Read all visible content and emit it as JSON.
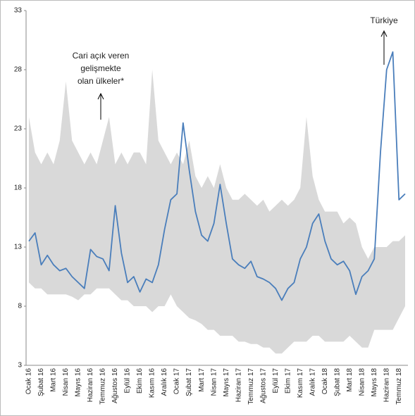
{
  "chart_data": {
    "type": "line",
    "categories": [
      "Ocak 16",
      null,
      "Şubat 16",
      null,
      "Mart 16",
      null,
      "Nisan 16",
      null,
      "Mayıs 16",
      null,
      "Haziran 16",
      null,
      "Temmuz 16",
      null,
      "Ağustos 16",
      null,
      "Eylül 16",
      null,
      "Ekim 16",
      null,
      "Kasım 16",
      null,
      "Aralık 16",
      null,
      "Ocak 17",
      null,
      "Şubat 17",
      null,
      "Mart 17",
      null,
      "Nisan 17",
      null,
      "Mayıs 17",
      null,
      "Haziran 17",
      null,
      "Temmuz 17",
      null,
      "Ağustos 17",
      null,
      "Eylül 17",
      null,
      "Ekim 17",
      null,
      "Kasım 17",
      null,
      "Aralık 17",
      null,
      "Ocak 18",
      null,
      "Şubat 18",
      null,
      "Mart 18",
      null,
      "Nisan 18",
      null,
      "Mayıs 18",
      null,
      "Haziran 18",
      null,
      "Temmuz 18",
      null
    ],
    "series": [
      {
        "name": "Türkiye",
        "color": "#4a7ebb",
        "values": [
          13.5,
          14.2,
          11.5,
          12.3,
          11.5,
          11.0,
          11.2,
          10.5,
          10.0,
          9.5,
          12.8,
          12.2,
          12.0,
          11.0,
          16.5,
          12.5,
          10.0,
          10.5,
          9.2,
          10.3,
          10.0,
          11.5,
          14.5,
          17.0,
          17.5,
          23.5,
          19.5,
          16.0,
          14.0,
          13.5,
          15.0,
          18.3,
          15.0,
          12.0,
          11.5,
          11.2,
          11.8,
          10.5,
          10.3,
          10.0,
          9.5,
          8.5,
          9.5,
          10.0,
          12.0,
          13.0,
          15.0,
          15.8,
          13.5,
          12.0,
          11.5,
          11.8,
          11.0,
          9.0,
          10.5,
          11.0,
          12.0,
          21.0,
          28.0,
          29.5,
          17.0,
          17.5
        ]
      }
    ],
    "band": {
      "label": [
        "Cari açık veren",
        "gelişmekte",
        "olan ülkeler*"
      ],
      "color": "#d9d9d9",
      "upper": [
        24,
        21,
        20,
        21,
        20,
        22,
        27,
        22,
        21,
        20,
        21,
        20,
        22,
        24,
        20,
        21,
        20,
        21,
        21,
        20,
        28,
        22,
        21,
        20,
        21,
        20,
        22,
        19,
        18,
        19,
        18,
        20,
        18,
        17,
        17,
        17.5,
        17,
        16.5,
        17,
        16,
        16.5,
        17,
        16.5,
        17,
        18,
        24,
        19,
        17,
        16,
        16,
        16,
        15,
        15.5,
        15,
        13,
        12,
        13,
        13,
        13,
        13.5,
        13.5,
        14
      ],
      "lower": [
        10,
        9.5,
        9.5,
        9,
        9,
        9,
        9,
        8.8,
        8.5,
        9,
        9,
        9.5,
        9.5,
        9.5,
        9,
        8.5,
        8.5,
        8,
        8,
        8,
        7.5,
        8,
        8,
        9,
        8,
        7.5,
        7,
        6.8,
        6.5,
        6,
        6,
        5.5,
        5.5,
        5.5,
        5,
        5,
        4.8,
        4.8,
        4.5,
        4.5,
        4,
        4,
        4.5,
        5,
        5,
        5,
        5.5,
        5.5,
        5,
        5,
        5,
        5,
        5.5,
        5,
        4.5,
        4.5,
        6,
        6,
        6,
        6,
        7,
        8
      ]
    },
    "ylim": [
      3,
      33
    ],
    "yticks": [
      3,
      8,
      13,
      18,
      23,
      28,
      33
    ],
    "grid": false
  }
}
